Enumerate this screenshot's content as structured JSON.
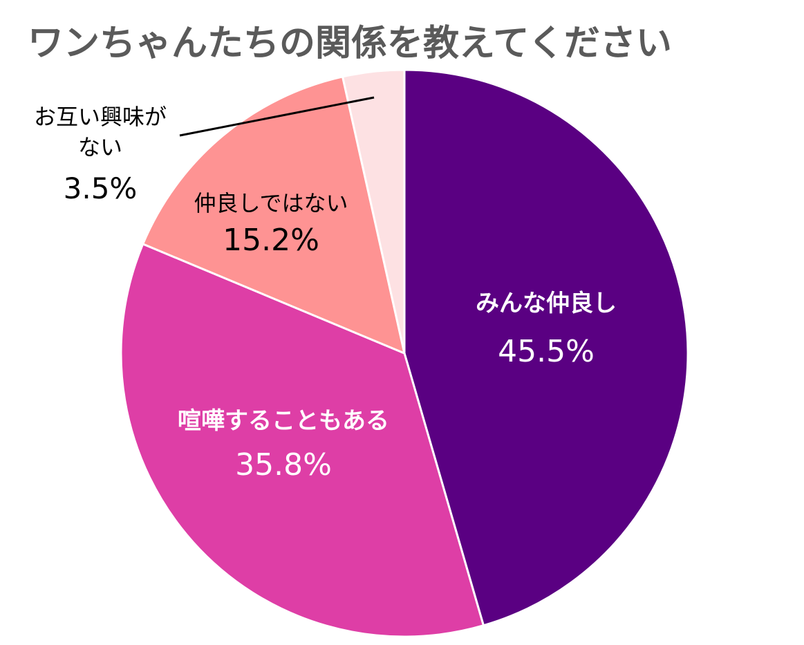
{
  "chart_data": {
    "type": "pie",
    "title": "ワンちゃんたちの関係を教えてください",
    "categories": [
      "みんな仲良し",
      "喧嘩することもある",
      "仲良しではない",
      "お互い興味がない"
    ],
    "category_lines": [
      [
        "みんな仲良し"
      ],
      [
        "喧嘩することもある"
      ],
      [
        "仲良しではない"
      ],
      [
        "お互い興味が",
        "ない"
      ]
    ],
    "values": [
      45.5,
      35.8,
      15.2,
      3.5
    ],
    "value_labels": [
      "45.5%",
      "35.8%",
      "15.2%",
      "3.5%"
    ],
    "colors": [
      "#5a0082",
      "#de3ea6",
      "#fe9393",
      "#fde1e3"
    ],
    "label_colors": [
      "#ffffff",
      "#ffffff",
      "#000000",
      "#000000"
    ],
    "start": "12 o'clock",
    "direction": "clockwise",
    "legend": "none"
  }
}
